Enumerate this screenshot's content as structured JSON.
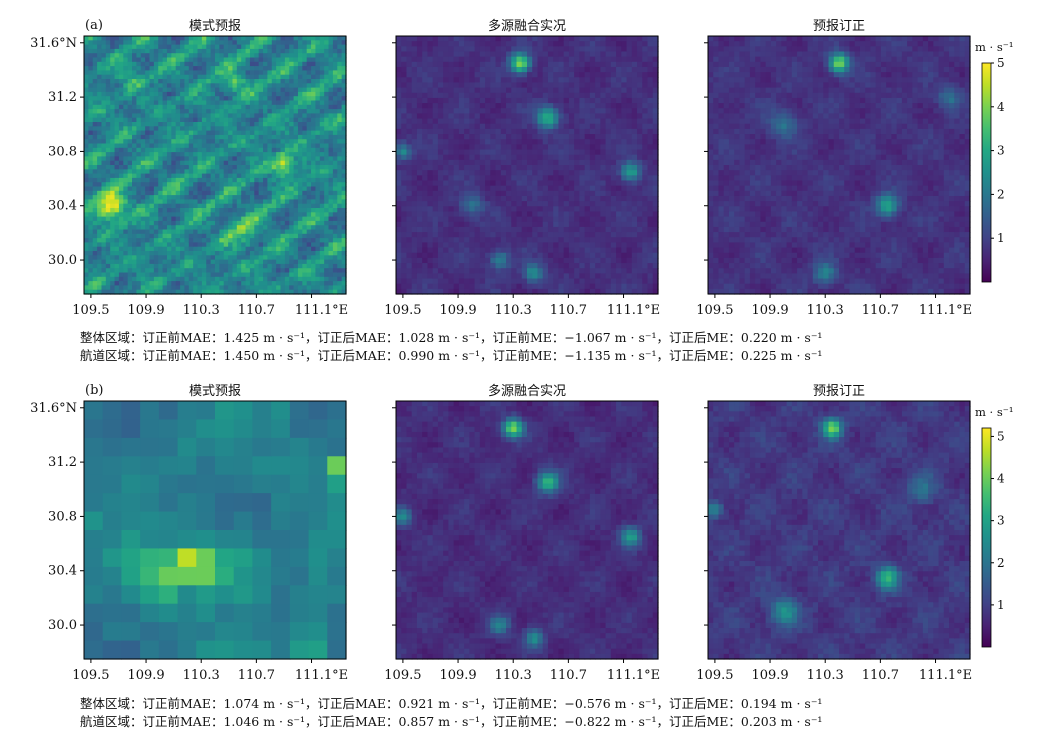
{
  "figure": {
    "rows": [
      {
        "label": "(a)",
        "panel_titles": [
          "模式预报",
          "多源融合实况",
          "预报订正"
        ],
        "stats": {
          "whole": "整体区域：订正前MAE：1.425 m · s⁻¹，订正后MAE：1.028 m · s⁻¹，订正前ME：−1.067 m · s⁻¹，订正后ME：0.220 m · s⁻¹",
          "route": "航道区域：订正前MAE：1.450 m · s⁻¹，订正后MAE：0.990 m · s⁻¹，订正前ME：−1.135 m · s⁻¹，订正后ME：0.225 m · s⁻¹"
        }
      },
      {
        "label": "(b)",
        "panel_titles": [
          "模式预报",
          "多源融合实况",
          "预报订正"
        ],
        "stats": {
          "whole": "整体区域：订正前MAE：1.074 m · s⁻¹，订正后MAE：0.921 m · s⁻¹，订正前ME：−0.576 m · s⁻¹，订正后ME：0.194 m · s⁻¹",
          "route": "航道区域：订正前MAE：1.046 m · s⁻¹，订正后MAE：0.857 m · s⁻¹，订正前ME：−0.822 m · s⁻¹，订正后ME：0.203 m · s⁻¹"
        }
      }
    ],
    "colorbar_unit": "m · s⁻¹"
  },
  "chart_data": [
    {
      "type": "heatmap",
      "title": "模式预报",
      "panel_label": "(a)",
      "xlim": [
        109.45,
        111.35
      ],
      "ylim": [
        29.75,
        31.65
      ],
      "x_ticks": [
        "109.5",
        "109.9",
        "110.3",
        "110.7",
        "111.1°E"
      ],
      "y_ticks": [
        "30.0",
        "30.4",
        "30.8",
        "31.2",
        "31.6°N"
      ],
      "colormap": "viridis",
      "value_range": [
        0,
        5
      ],
      "notable_maxima": [
        {
          "lon": 109.7,
          "lat": 30.4,
          "value": 4.6
        },
        {
          "lon": 110.85,
          "lat": 30.7,
          "value": 4.3
        },
        {
          "lon": 110.6,
          "lat": 31.3,
          "value": 3.5
        }
      ]
    },
    {
      "type": "heatmap",
      "title": "多源融合实况",
      "panel_label": "(a)",
      "xlim": [
        109.45,
        111.35
      ],
      "ylim": [
        29.75,
        31.65
      ],
      "x_ticks": [
        "109.5",
        "109.9",
        "110.3",
        "110.7",
        "111.1°E"
      ],
      "colormap": "viridis",
      "value_range": [
        0,
        5
      ],
      "notable_maxima": [
        {
          "lon": 110.3,
          "lat": 31.45,
          "value": 4.5
        },
        {
          "lon": 110.55,
          "lat": 31.05,
          "value": 3.6
        },
        {
          "lon": 111.15,
          "lat": 30.65,
          "value": 3.2
        }
      ]
    },
    {
      "type": "heatmap",
      "title": "预报订正",
      "panel_label": "(a)",
      "xlim": [
        109.45,
        111.35
      ],
      "ylim": [
        29.75,
        31.65
      ],
      "x_ticks": [
        "109.5",
        "109.9",
        "110.3",
        "110.7",
        "111.1°E"
      ],
      "colormap": "viridis",
      "value_range": [
        0,
        5
      ],
      "colorbar_ticks": [
        "1",
        "2",
        "3",
        "4",
        "5"
      ],
      "notable_maxima": [
        {
          "lon": 110.4,
          "lat": 31.45,
          "value": 4.3
        },
        {
          "lon": 110.75,
          "lat": 30.4,
          "value": 3.3
        }
      ]
    },
    {
      "type": "heatmap",
      "title": "模式预报",
      "panel_label": "(b)",
      "xlim": [
        109.45,
        111.35
      ],
      "ylim": [
        29.75,
        31.65
      ],
      "x_ticks": [
        "109.5",
        "109.9",
        "110.3",
        "110.7",
        "111.1°E"
      ],
      "y_ticks": [
        "30.0",
        "30.4",
        "30.8",
        "31.2",
        "31.6°N"
      ],
      "colormap": "viridis",
      "value_range": [
        0,
        5.2
      ],
      "grid_cells": "14 x 14 coarse",
      "notable_maxima": [
        {
          "lon": 110.25,
          "lat": 30.43,
          "value": 5.0
        },
        {
          "lon": 111.3,
          "lat": 31.15,
          "value": 4.5
        }
      ]
    },
    {
      "type": "heatmap",
      "title": "多源融合实况",
      "panel_label": "(b)",
      "xlim": [
        109.45,
        111.35
      ],
      "ylim": [
        29.75,
        31.65
      ],
      "x_ticks": [
        "109.5",
        "109.9",
        "110.3",
        "110.7",
        "111.1°E"
      ],
      "colormap": "viridis",
      "value_range": [
        0,
        5.2
      ],
      "notable_maxima": [
        {
          "lon": 110.3,
          "lat": 31.45,
          "value": 4.5
        },
        {
          "lon": 110.55,
          "lat": 31.05,
          "value": 3.6
        }
      ]
    },
    {
      "type": "heatmap",
      "title": "预报订正",
      "panel_label": "(b)",
      "xlim": [
        109.45,
        111.35
      ],
      "ylim": [
        29.75,
        31.65
      ],
      "x_ticks": [
        "109.5",
        "109.9",
        "110.3",
        "110.7",
        "111.1°E"
      ],
      "colormap": "viridis",
      "value_range": [
        0,
        5.2
      ],
      "colorbar_ticks": [
        "1",
        "2",
        "3",
        "4",
        "5"
      ],
      "notable_maxima": [
        {
          "lon": 110.35,
          "lat": 31.45,
          "value": 4.2
        },
        {
          "lon": 110.75,
          "lat": 30.35,
          "value": 3.5
        }
      ]
    }
  ]
}
